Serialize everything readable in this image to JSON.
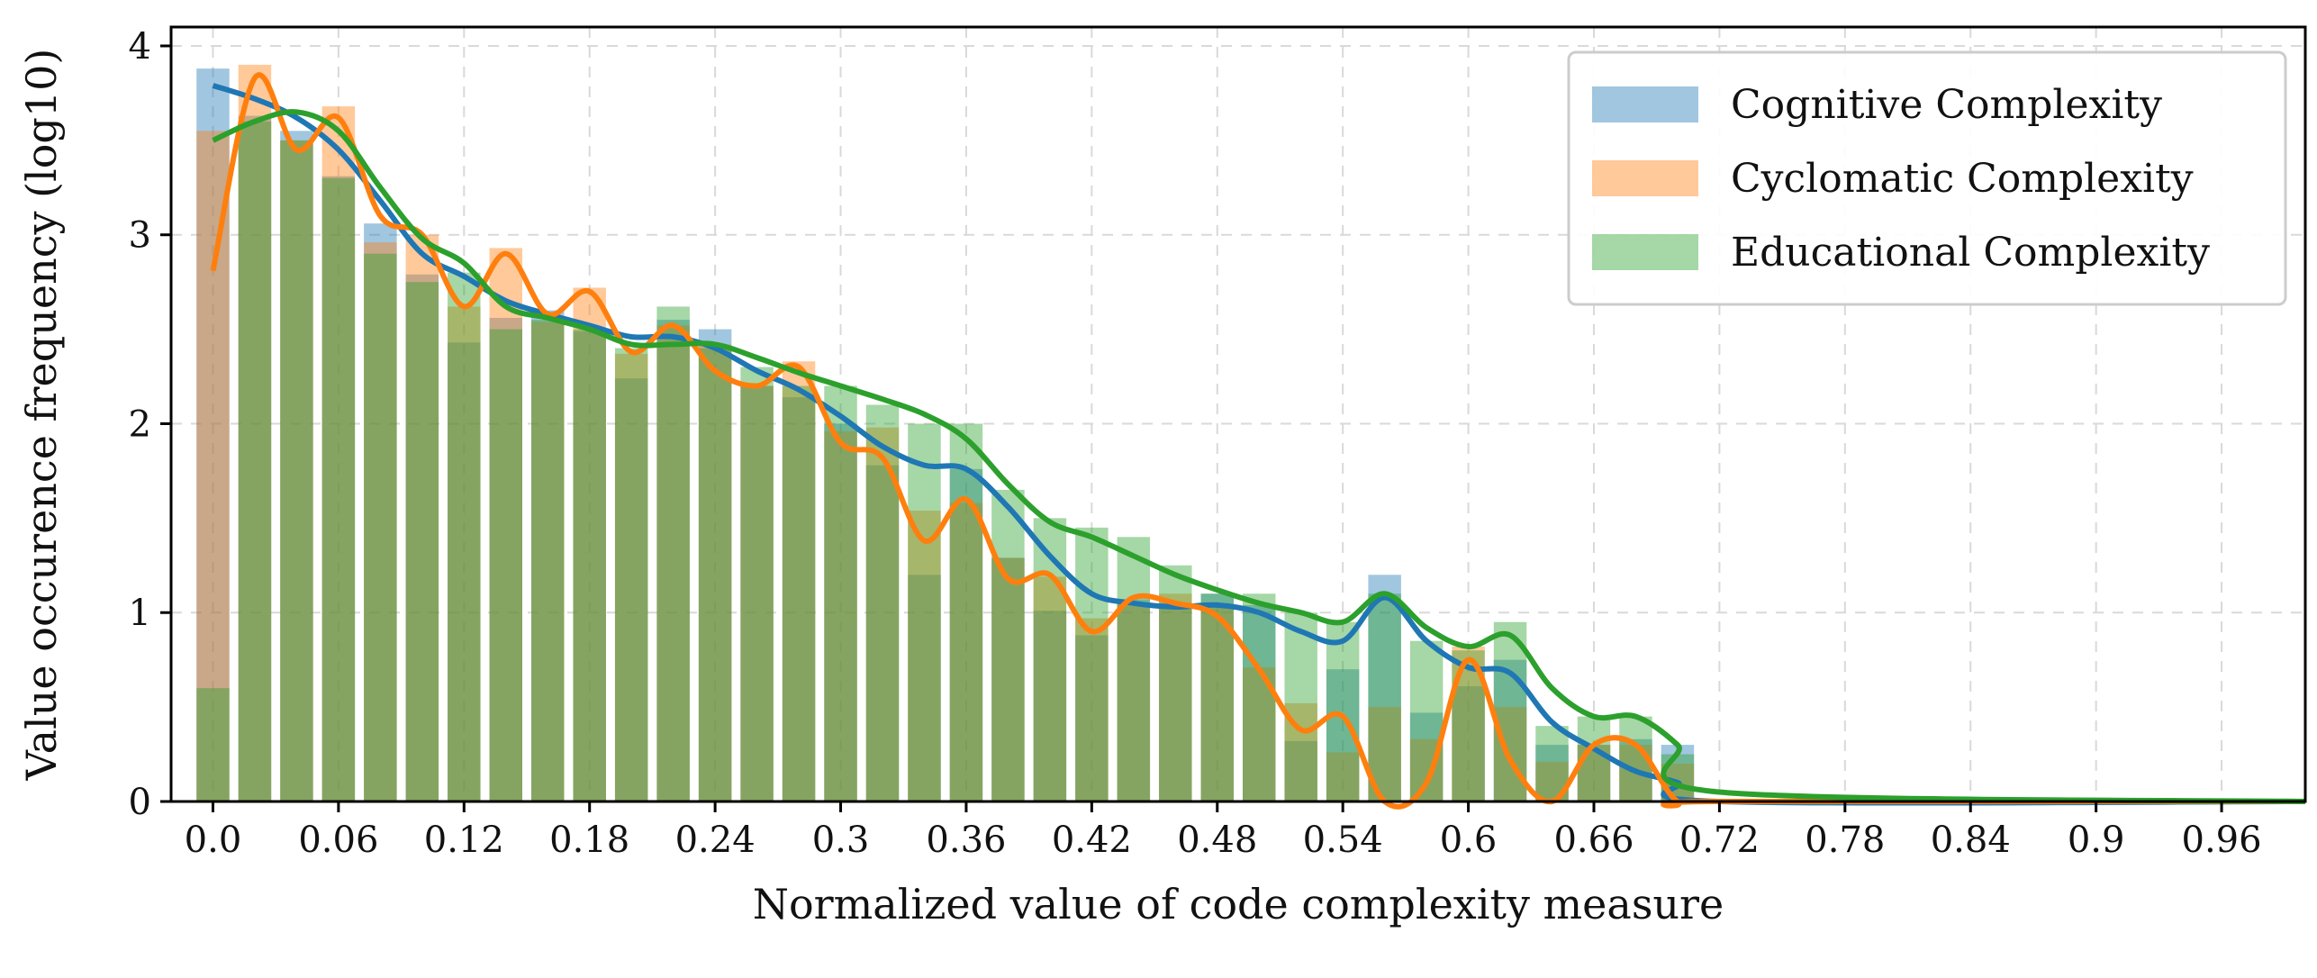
{
  "chart_data": {
    "type": "bar",
    "xlabel": "Normalized value of code complexity measure",
    "ylabel": "Value occurence frequency (log10)",
    "xlim": [
      -0.02,
      1.0
    ],
    "ylim": [
      0,
      4.1
    ],
    "x_ticks": [
      {
        "value": 0.0,
        "label": "0.0"
      },
      {
        "value": 0.06,
        "label": "0.06"
      },
      {
        "value": 0.12,
        "label": "0.12"
      },
      {
        "value": 0.18,
        "label": "0.18"
      },
      {
        "value": 0.24,
        "label": "0.24"
      },
      {
        "value": 0.3,
        "label": "0.3"
      },
      {
        "value": 0.36,
        "label": "0.36"
      },
      {
        "value": 0.42,
        "label": "0.42"
      },
      {
        "value": 0.48,
        "label": "0.48"
      },
      {
        "value": 0.54,
        "label": "0.54"
      },
      {
        "value": 0.6,
        "label": "0.6"
      },
      {
        "value": 0.66,
        "label": "0.66"
      },
      {
        "value": 0.72,
        "label": "0.72"
      },
      {
        "value": 0.78,
        "label": "0.78"
      },
      {
        "value": 0.84,
        "label": "0.84"
      },
      {
        "value": 0.9,
        "label": "0.9"
      },
      {
        "value": 0.96,
        "label": "0.96"
      }
    ],
    "y_ticks": [
      {
        "value": 0,
        "label": "0"
      },
      {
        "value": 1,
        "label": "1"
      },
      {
        "value": 2,
        "label": "2"
      },
      {
        "value": 3,
        "label": "3"
      },
      {
        "value": 4,
        "label": "4"
      }
    ],
    "grid": true,
    "legend_position": "top-right",
    "bin_width": 0.02,
    "bins": [
      0.0,
      0.02,
      0.04,
      0.06,
      0.08,
      0.1,
      0.12,
      0.14,
      0.16,
      0.18,
      0.2,
      0.22,
      0.24,
      0.26,
      0.28,
      0.3,
      0.32,
      0.34,
      0.36,
      0.38,
      0.4,
      0.42,
      0.44,
      0.46,
      0.48,
      0.5,
      0.52,
      0.54,
      0.56,
      0.58,
      0.6,
      0.62,
      0.64,
      0.66,
      0.68,
      0.7
    ],
    "series": [
      {
        "name": "Cognitive Complexity",
        "color": "#1f77b4",
        "values": [
          3.88,
          3.63,
          3.55,
          3.31,
          3.06,
          2.79,
          2.43,
          2.56,
          2.6,
          2.49,
          2.24,
          2.55,
          2.5,
          2.2,
          2.14,
          2.0,
          1.78,
          1.2,
          1.76,
          1.29,
          1.01,
          0.88,
          1.07,
          1.05,
          1.1,
          1.04,
          0.32,
          0.7,
          1.2,
          0.47,
          0.61,
          0.75,
          0.3,
          0.3,
          0.33,
          0.3
        ],
        "kde": [
          3.79,
          3.72,
          3.62,
          3.45,
          3.18,
          2.9,
          2.78,
          2.65,
          2.58,
          2.52,
          2.46,
          2.46,
          2.4,
          2.28,
          2.18,
          2.04,
          1.88,
          1.78,
          1.76,
          1.56,
          1.3,
          1.1,
          1.05,
          1.03,
          1.04,
          1.0,
          0.9,
          0.85,
          1.08,
          0.85,
          0.71,
          0.68,
          0.42,
          0.28,
          0.16,
          0.1,
          0.0
        ]
      },
      {
        "name": "Cyclomatic Complexity",
        "color": "#ff7f0e",
        "values": [
          3.55,
          3.9,
          3.5,
          3.68,
          2.96,
          3.0,
          2.62,
          2.93,
          2.54,
          2.72,
          2.37,
          2.52,
          2.42,
          2.2,
          2.33,
          1.96,
          1.98,
          1.54,
          1.58,
          1.29,
          1.19,
          0.97,
          1.05,
          1.1,
          1.03,
          0.71,
          0.52,
          0.26,
          0.5,
          0.33,
          0.82,
          0.5,
          0.21,
          0.3,
          0.3,
          0.2
        ],
        "kde": [
          2.81,
          3.83,
          3.45,
          3.62,
          3.1,
          3.0,
          2.62,
          2.9,
          2.58,
          2.7,
          2.38,
          2.52,
          2.28,
          2.2,
          2.3,
          1.9,
          1.82,
          1.38,
          1.6,
          1.18,
          1.2,
          0.9,
          1.08,
          1.05,
          0.98,
          0.7,
          0.38,
          0.45,
          0.0,
          0.1,
          0.75,
          0.22,
          0.0,
          0.3,
          0.3,
          0.0,
          0.0
        ]
      },
      {
        "name": "Educational Complexity",
        "color": "#2ca02c",
        "values": [
          0.6,
          3.6,
          3.5,
          3.3,
          2.9,
          2.75,
          2.8,
          2.5,
          2.55,
          2.5,
          2.4,
          2.62,
          2.4,
          2.3,
          2.2,
          2.2,
          2.1,
          2.0,
          2.0,
          1.65,
          1.5,
          1.45,
          1.4,
          1.25,
          1.1,
          1.1,
          1.0,
          0.95,
          1.1,
          0.85,
          0.8,
          0.95,
          0.4,
          0.45,
          0.45,
          0.25
        ],
        "kde": [
          3.5,
          3.6,
          3.65,
          3.55,
          3.25,
          2.98,
          2.85,
          2.62,
          2.56,
          2.5,
          2.42,
          2.42,
          2.42,
          2.35,
          2.27,
          2.2,
          2.13,
          2.05,
          1.92,
          1.68,
          1.48,
          1.4,
          1.3,
          1.2,
          1.12,
          1.05,
          1.0,
          0.95,
          1.1,
          0.92,
          0.82,
          0.88,
          0.6,
          0.45,
          0.45,
          0.3,
          0.05
        ]
      }
    ]
  }
}
